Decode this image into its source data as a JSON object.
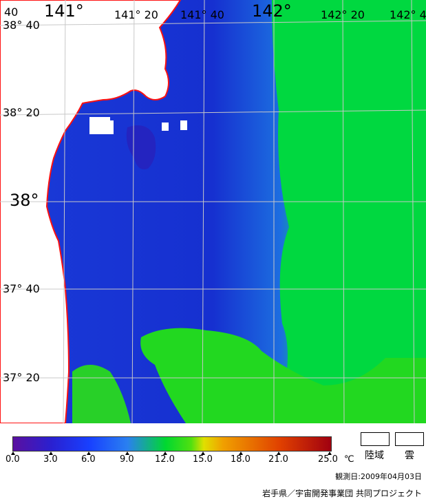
{
  "map": {
    "lon_labels": [
      {
        "text": "141°",
        "big": true
      },
      {
        "text": "141° 20",
        "big": false
      },
      {
        "text": "141° 40",
        "big": false
      },
      {
        "text": "142°",
        "big": true
      },
      {
        "text": "142° 20",
        "big": false
      },
      {
        "text": "142° 4",
        "big": false
      }
    ],
    "lat_labels": [
      {
        "text": "38° 40",
        "big": false
      },
      {
        "text": "38° 20",
        "big": false
      },
      {
        "text": "38°",
        "big": true
      },
      {
        "text": "37° 40",
        "big": false
      },
      {
        "text": "37° 20",
        "big": false
      }
    ],
    "corner_label": "40",
    "colors": {
      "coast": "#ff1010",
      "grid": "#c8c8c8",
      "land": "#ffffff"
    }
  },
  "colorbar": {
    "ticks": [
      "0.0",
      "3.0",
      "6.0",
      "9.0",
      "12.0",
      "15.0",
      "18.0",
      "21.0",
      "25.0"
    ],
    "unit": "℃"
  },
  "legend": {
    "land_label": "陸域",
    "cloud_label": "雲"
  },
  "observation": "観測日:2009年04月03日",
  "credit": "岩手県／宇宙開発事業団 共同プロジェクト"
}
